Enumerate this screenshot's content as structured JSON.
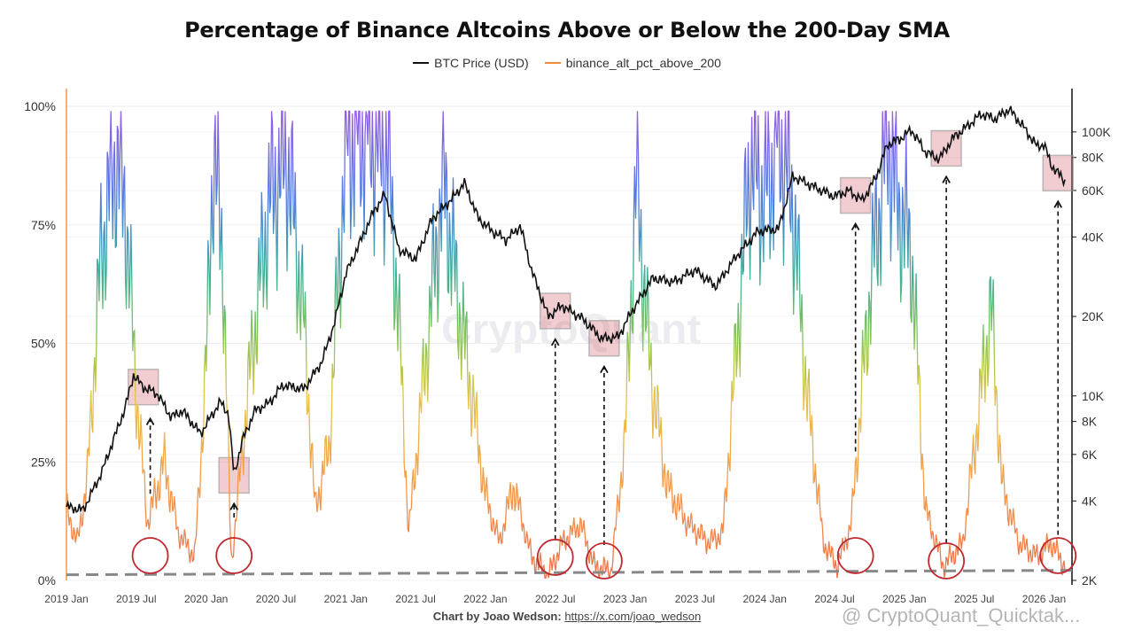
{
  "chart_data": {
    "type": "line",
    "title": "Percentage of Binance Altcoins Above or Below the 200-Day SMA",
    "legend": {
      "placement": "top-center"
    },
    "series": [
      {
        "name": "BTC Price (USD)",
        "axis": "right",
        "color": "#111111"
      },
      {
        "name": "binance_alt_pct_above_200",
        "axis": "left",
        "color": "#f08a3c"
      }
    ],
    "x_ticks": [
      "2019 Jan",
      "2019 Jul",
      "2020 Jan",
      "2020 Jul",
      "2021 Jan",
      "2021 Jul",
      "2022 Jan",
      "2022 Jul",
      "2023 Jan",
      "2023 Jul",
      "2024 Jan",
      "2024 Jul",
      "2025 Jan",
      "2025 Jul",
      "2026 Jan"
    ],
    "x_range": [
      2019.0,
      2026.2
    ],
    "left_axis": {
      "ticks": [
        "0%",
        "25%",
        "50%",
        "75%",
        "100%"
      ],
      "tick_values": [
        0,
        25,
        50,
        75,
        100
      ],
      "ylim": [
        0,
        100
      ]
    },
    "right_axis": {
      "scale": "log",
      "ticks": [
        "2K",
        "4K",
        "6K",
        "8K",
        "10K",
        "20K",
        "40K",
        "60K",
        "80K",
        "100K"
      ],
      "tick_values": [
        2000,
        4000,
        6000,
        8000,
        10000,
        20000,
        40000,
        60000,
        80000,
        100000
      ],
      "ylim": [
        2000,
        125000
      ]
    },
    "btc_price": [
      [
        2019.0,
        3800
      ],
      [
        2019.12,
        3700
      ],
      [
        2019.25,
        5100
      ],
      [
        2019.42,
        9000
      ],
      [
        2019.48,
        12000
      ],
      [
        2019.55,
        10800
      ],
      [
        2019.65,
        10200
      ],
      [
        2019.75,
        8300
      ],
      [
        2019.83,
        8800
      ],
      [
        2019.96,
        7200
      ],
      [
        2020.1,
        9500
      ],
      [
        2020.16,
        8600
      ],
      [
        2020.2,
        5000
      ],
      [
        2020.26,
        6800
      ],
      [
        2020.35,
        8800
      ],
      [
        2020.45,
        9400
      ],
      [
        2020.55,
        11000
      ],
      [
        2020.7,
        10600
      ],
      [
        2020.83,
        13500
      ],
      [
        2020.92,
        19000
      ],
      [
        2021.0,
        29000
      ],
      [
        2021.1,
        38000
      ],
      [
        2021.2,
        50000
      ],
      [
        2021.28,
        58000
      ],
      [
        2021.38,
        36000
      ],
      [
        2021.5,
        33000
      ],
      [
        2021.62,
        47000
      ],
      [
        2021.75,
        55000
      ],
      [
        2021.85,
        64000
      ],
      [
        2021.95,
        47000
      ],
      [
        2022.05,
        42000
      ],
      [
        2022.15,
        39000
      ],
      [
        2022.25,
        44000
      ],
      [
        2022.33,
        30000
      ],
      [
        2022.45,
        20000
      ],
      [
        2022.55,
        22000
      ],
      [
        2022.7,
        19500
      ],
      [
        2022.83,
        16500
      ],
      [
        2022.95,
        16700
      ],
      [
        2023.05,
        21000
      ],
      [
        2023.2,
        28000
      ],
      [
        2023.35,
        27000
      ],
      [
        2023.5,
        30000
      ],
      [
        2023.65,
        26000
      ],
      [
        2023.8,
        34000
      ],
      [
        2023.95,
        42000
      ],
      [
        2024.1,
        43000
      ],
      [
        2024.2,
        68000
      ],
      [
        2024.35,
        62000
      ],
      [
        2024.5,
        57000
      ],
      [
        2024.6,
        60000
      ],
      [
        2024.7,
        55000
      ],
      [
        2024.8,
        68000
      ],
      [
        2024.88,
        90000
      ],
      [
        2024.97,
        94000
      ],
      [
        2025.05,
        102000
      ],
      [
        2025.15,
        84000
      ],
      [
        2025.25,
        79000
      ],
      [
        2025.35,
        95000
      ],
      [
        2025.45,
        105000
      ],
      [
        2025.55,
        117000
      ],
      [
        2025.65,
        112000
      ],
      [
        2025.75,
        122000
      ],
      [
        2025.85,
        105000
      ],
      [
        2025.95,
        88000
      ],
      [
        2026.0,
        90000
      ],
      [
        2026.05,
        75000
      ],
      [
        2026.15,
        65000
      ]
    ],
    "alt_pct_above_200": [
      [
        2019.0,
        15
      ],
      [
        2019.08,
        8
      ],
      [
        2019.15,
        22
      ],
      [
        2019.25,
        70
      ],
      [
        2019.35,
        90
      ],
      [
        2019.42,
        80
      ],
      [
        2019.5,
        40
      ],
      [
        2019.58,
        12
      ],
      [
        2019.7,
        25
      ],
      [
        2019.8,
        10
      ],
      [
        2019.92,
        5
      ],
      [
        2020.0,
        45
      ],
      [
        2020.05,
        90
      ],
      [
        2020.12,
        70
      ],
      [
        2020.18,
        3
      ],
      [
        2020.3,
        40
      ],
      [
        2020.45,
        80
      ],
      [
        2020.58,
        90
      ],
      [
        2020.7,
        55
      ],
      [
        2020.78,
        15
      ],
      [
        2020.88,
        28
      ],
      [
        2021.0,
        92
      ],
      [
        2021.15,
        96
      ],
      [
        2021.3,
        90
      ],
      [
        2021.38,
        55
      ],
      [
        2021.45,
        10
      ],
      [
        2021.55,
        40
      ],
      [
        2021.7,
        85
      ],
      [
        2021.8,
        60
      ],
      [
        2021.9,
        40
      ],
      [
        2022.0,
        18
      ],
      [
        2022.1,
        8
      ],
      [
        2022.2,
        20
      ],
      [
        2022.33,
        5
      ],
      [
        2022.45,
        1
      ],
      [
        2022.55,
        8
      ],
      [
        2022.68,
        12
      ],
      [
        2022.78,
        3
      ],
      [
        2022.9,
        2
      ],
      [
        2023.0,
        30
      ],
      [
        2023.08,
        85
      ],
      [
        2023.18,
        45
      ],
      [
        2023.3,
        20
      ],
      [
        2023.45,
        12
      ],
      [
        2023.6,
        8
      ],
      [
        2023.7,
        10
      ],
      [
        2023.8,
        50
      ],
      [
        2023.9,
        90
      ],
      [
        2024.0,
        80
      ],
      [
        2024.1,
        95
      ],
      [
        2024.2,
        80
      ],
      [
        2024.3,
        40
      ],
      [
        2024.42,
        8
      ],
      [
        2024.52,
        3
      ],
      [
        2024.62,
        12
      ],
      [
        2024.75,
        60
      ],
      [
        2024.88,
        95
      ],
      [
        2024.95,
        80
      ],
      [
        2025.05,
        70
      ],
      [
        2025.15,
        15
      ],
      [
        2025.28,
        3
      ],
      [
        2025.42,
        8
      ],
      [
        2025.55,
        40
      ],
      [
        2025.62,
        58
      ],
      [
        2025.7,
        20
      ],
      [
        2025.82,
        8
      ],
      [
        2025.95,
        5
      ],
      [
        2026.05,
        8
      ],
      [
        2026.15,
        3
      ]
    ],
    "annotations": {
      "baseline_pct": 1,
      "highlighted_btc_dates": [
        2019.55,
        2020.2,
        2022.5,
        2022.85,
        2024.65,
        2025.3,
        2026.1
      ],
      "circled_low_dates": [
        2019.6,
        2020.2,
        2022.5,
        2022.85,
        2024.65,
        2025.3,
        2026.1
      ]
    }
  },
  "legend_labels": {
    "btc": "BTC Price (USD)",
    "alt": "binance_alt_pct_above_200"
  },
  "credit": {
    "prefix": "Chart by Joao Wedson:",
    "link": "https://x.com/joao_wedson"
  },
  "watermarks": {
    "center": "CryptoQuant",
    "corner": "@ CryptoQuant_Quicktak..."
  }
}
